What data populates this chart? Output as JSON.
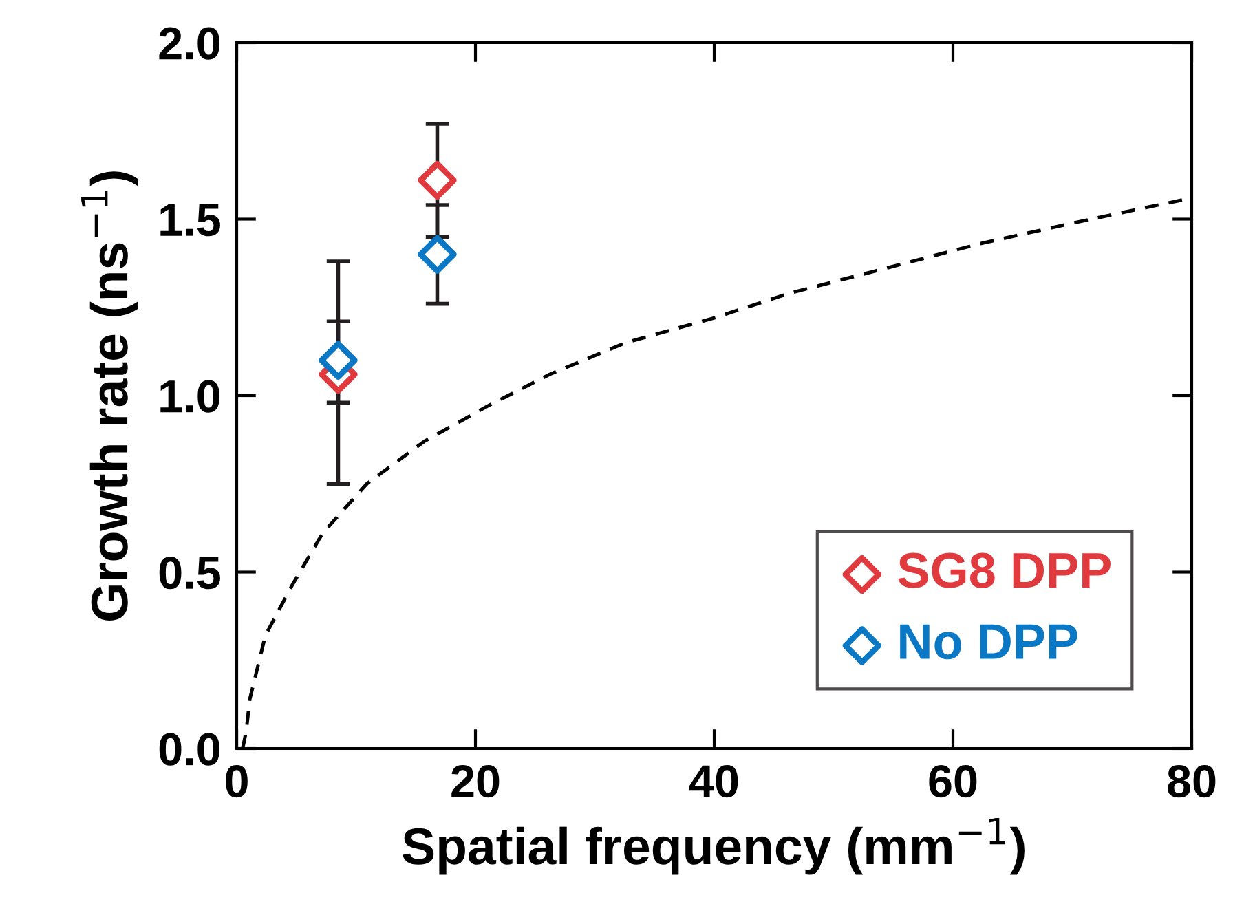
{
  "chart_data": {
    "type": "scatter",
    "xlabel": "Spatial frequency (mm$^{−1}$)",
    "ylabel": "Growth rate (ns$^{−1}$)",
    "xlim": [
      0,
      80
    ],
    "ylim": [
      0,
      2.0
    ],
    "xticks": [
      0,
      20,
      40,
      60,
      80
    ],
    "yticks": [
      {
        "value": 0,
        "label": "0.0"
      },
      {
        "value": 0.5,
        "label": "0.5"
      },
      {
        "value": 1.0,
        "label": "1.0"
      },
      {
        "value": 1.5,
        "label": "1.5"
      },
      {
        "value": 2.0,
        "label": "2.0"
      }
    ],
    "grid": false,
    "legend": "bottom right",
    "marker": "diamond",
    "series": [
      {
        "name": "SG8 DPP",
        "color": "#e0393e",
        "x": [
          8.5,
          16.8
        ],
        "values": [
          1.06,
          1.61
        ],
        "errors": [
          [
            0.75,
            1.38
          ],
          [
            1.45,
            1.77
          ]
        ]
      },
      {
        "name": "No DPP",
        "color": "#0a78c4",
        "x": [
          8.5,
          16.8
        ],
        "values": [
          1.1,
          1.4
        ],
        "errors": [
          [
            0.98,
            1.21
          ],
          [
            1.26,
            1.54
          ]
        ]
      },
      {
        "type": "line",
        "color": "#000000",
        "line_style": "dashed",
        "marker": "none",
        "x": [
          0.5,
          0.8,
          1.1,
          2.4,
          4.6,
          7.2,
          10.9,
          15.7,
          21,
          26.2,
          32.6,
          40,
          46.3,
          54.3,
          62.2,
          70.2,
          80
        ],
        "values": [
          0,
          0.05,
          0.14,
          0.32,
          0.46,
          0.61,
          0.75,
          0.87,
          0.97,
          1.06,
          1.15,
          1.22,
          1.29,
          1.36,
          1.43,
          1.49,
          1.56
        ]
      }
    ]
  }
}
